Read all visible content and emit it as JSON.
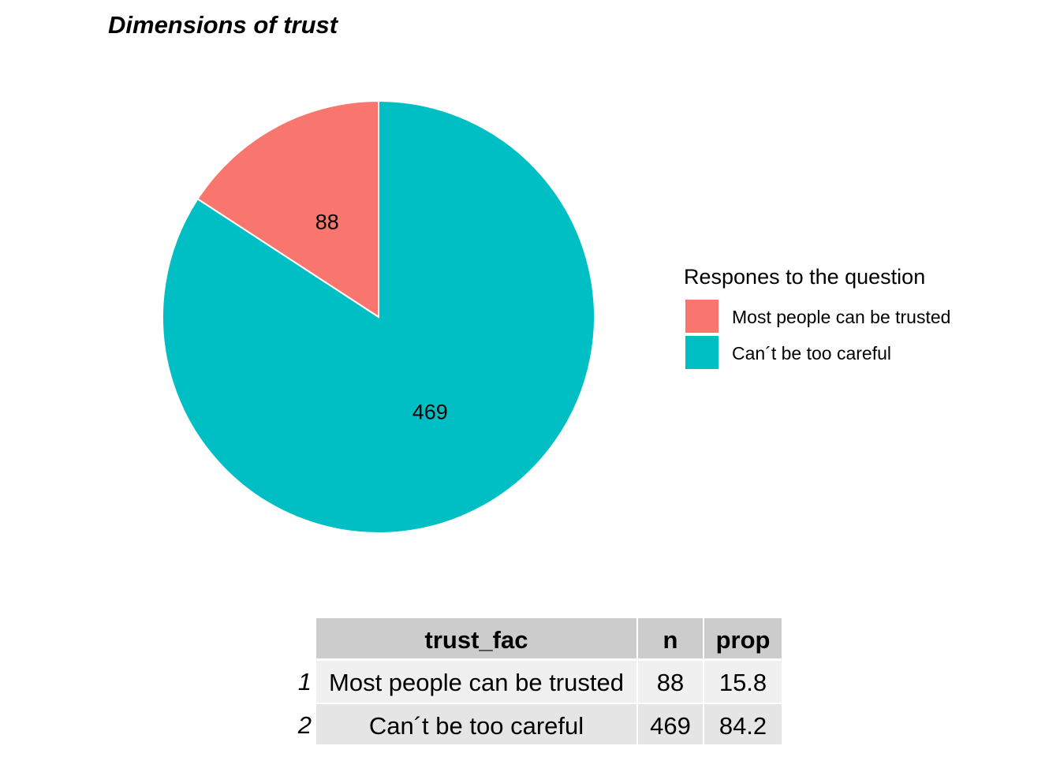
{
  "chart_data": {
    "type": "pie",
    "title": "Dimensions of trust",
    "slices": [
      {
        "label": "Most people can be trusted",
        "value": 88,
        "color": "#F8766D"
      },
      {
        "label": "Can´t be too careful",
        "value": 469,
        "color": "#00BFC4"
      }
    ],
    "legend": {
      "title": "Respones to the question",
      "position": "right"
    }
  },
  "table": {
    "headers": [
      "trust_fac",
      "n",
      "prop"
    ],
    "rows": [
      {
        "rowname": "1",
        "cells": [
          "Most people can be trusted",
          "88",
          "15.8"
        ]
      },
      {
        "rowname": "2",
        "cells": [
          "Can´t be too careful",
          "469",
          "84.2"
        ]
      }
    ],
    "colors": {
      "header": "#CCCCCC",
      "row_odd": "#F0F0F0",
      "row_even": "#E5E5E5"
    }
  }
}
